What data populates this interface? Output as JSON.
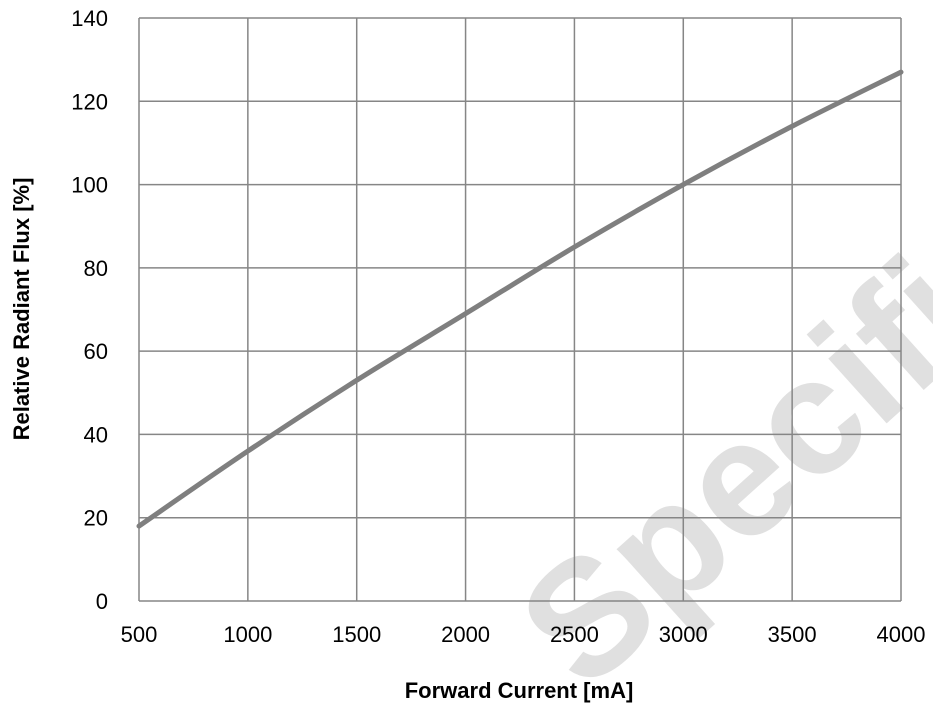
{
  "chart_data": {
    "type": "line",
    "xlabel": "Forward Current [mA]",
    "ylabel": "Relative Radiant Flux [%]",
    "xlim": [
      500,
      4000
    ],
    "ylim": [
      0,
      140
    ],
    "x_ticks": [
      500,
      1000,
      1500,
      2000,
      2500,
      3000,
      3500,
      4000
    ],
    "y_ticks": [
      0,
      20,
      40,
      60,
      80,
      100,
      120,
      140
    ],
    "grid": true,
    "legend": "none",
    "series": [
      {
        "color": "#7f7f7f",
        "x": [
          500,
          1000,
          1500,
          2000,
          2500,
          3000,
          3500,
          4000
        ],
        "y": [
          18,
          36,
          53,
          69,
          85,
          100,
          114,
          127
        ]
      }
    ]
  },
  "watermark": {
    "text": "Specificati",
    "color": "#c8c8c8"
  }
}
